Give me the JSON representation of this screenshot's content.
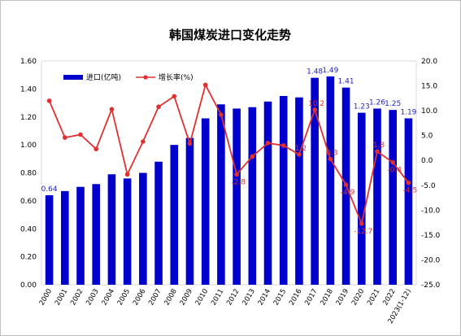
{
  "chart_data": {
    "type": "bar+line",
    "title": "韩国煤炭进口变化走势",
    "categories": [
      "2000",
      "2001",
      "2002",
      "2003",
      "2004",
      "2005",
      "2006",
      "2007",
      "2008",
      "2009",
      "2010",
      "2011",
      "2012",
      "2013",
      "2014",
      "2015",
      "2016",
      "2017",
      "2018",
      "2019",
      "2020",
      "2021",
      "2022",
      "2023(1-12)"
    ],
    "series": [
      {
        "name": "进口(亿吨)",
        "type": "bar",
        "axis": "left",
        "color": "#0000cc",
        "values": [
          0.64,
          0.67,
          0.7,
          0.72,
          0.79,
          0.76,
          0.8,
          0.88,
          1.0,
          1.05,
          1.19,
          1.29,
          1.26,
          1.27,
          1.31,
          1.35,
          1.34,
          1.48,
          1.49,
          1.41,
          1.23,
          1.26,
          1.25,
          1.19
        ],
        "labeled_indices": [
          0,
          17,
          18,
          19,
          20,
          21,
          22,
          23
        ]
      },
      {
        "name": "增长率(%)",
        "type": "line",
        "axis": "right",
        "color": "#e03030",
        "values": [
          12.0,
          4.6,
          5.2,
          2.3,
          10.3,
          -2.8,
          3.8,
          10.8,
          12.9,
          3.4,
          15.2,
          9.2,
          -2.8,
          0.8,
          3.5,
          3.0,
          1.2,
          10.2,
          0.3,
          -4.9,
          -12.7,
          1.8,
          -0.4,
          -4.5
        ],
        "labeled_indices": [
          12,
          16,
          17,
          18,
          19,
          20,
          21,
          22,
          23
        ]
      }
    ],
    "y_left": {
      "min": 0,
      "max": 1.6,
      "step": 0.2,
      "decimals": 2
    },
    "y_right": {
      "min": -25,
      "max": 20,
      "step": 5,
      "decimals": 1
    },
    "legend_position": "top-left"
  }
}
